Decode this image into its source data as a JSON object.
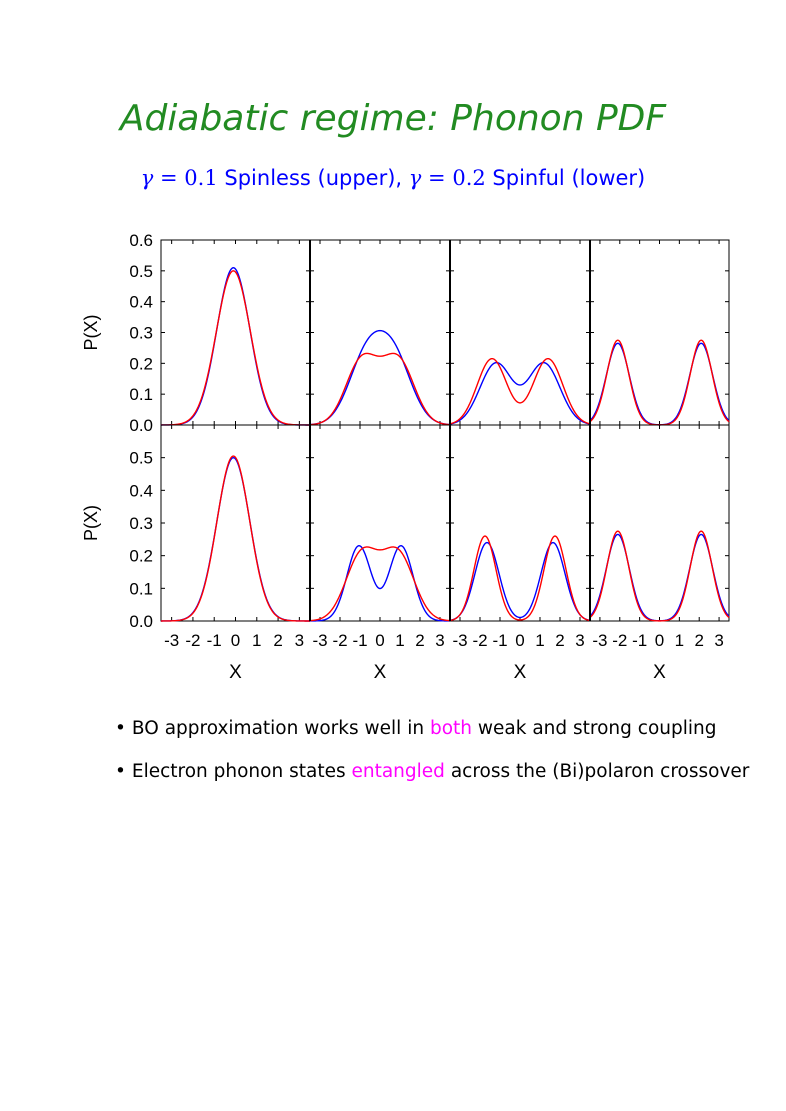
{
  "title": "Adiabatic regime: Phonon PDF",
  "subtitle": {
    "gamma_symbol": "γ",
    "equals": "=",
    "gamma_upper": "0.1",
    "upper_text": "Spinless (upper),",
    "gamma_lower": "0.2",
    "lower_text": "Spinful (lower)"
  },
  "colors": {
    "title": "#228B22",
    "subtitle": "#0000ff",
    "series_a": "#0000ff",
    "series_b": "#ff0000",
    "highlight": "#ff00ff"
  },
  "bullets": [
    {
      "symbol": "•",
      "before": "BO approximation works well in",
      "highlight": "both",
      "after": "weak and strong coupling"
    },
    {
      "symbol": "•",
      "before": "Electron phonon states",
      "highlight": "entangled",
      "after": "across the (Bi)polaron crossover"
    }
  ],
  "chart_data": {
    "type": "line",
    "layout": "2 rows x 4 columns of panels",
    "ylabel": "P(X)",
    "xlabel": "X",
    "xlim": [
      -3.5,
      3.5
    ],
    "xticks": [
      -3,
      -2,
      -1,
      0,
      1,
      2,
      3
    ],
    "xtick_labels": [
      "-3",
      "-2",
      "-1",
      "0",
      "1",
      "2",
      "3"
    ],
    "rows": [
      {
        "label": "upper",
        "ylim": [
          0,
          0.6
        ],
        "yticks": [
          0,
          0.1,
          0.2,
          0.3,
          0.4,
          0.5,
          0.6
        ],
        "ytick_labels": [
          "0.0",
          "0.1",
          "0.2",
          "0.3",
          "0.4",
          "0.5",
          "0.6"
        ],
        "panels": [
          {
            "series": [
              {
                "color": "#0000ff",
                "peaks": [
                  [
                    -0.1,
                    0.51,
                    0.78
                  ]
                ]
              },
              {
                "color": "#ff0000",
                "peaks": [
                  [
                    -0.1,
                    0.5,
                    0.8
                  ]
                ]
              }
            ]
          },
          {
            "series": [
              {
                "color": "#0000ff",
                "peaks": [
                  [
                    -0.7,
                    0.21,
                    0.88
                  ],
                  [
                    0.7,
                    0.21,
                    0.88
                  ]
                ]
              },
              {
                "color": "#ff0000",
                "peaks": [
                  [
                    -0.9,
                    0.21,
                    0.8
                  ],
                  [
                    0.9,
                    0.21,
                    0.8
                  ]
                ]
              }
            ]
          },
          {
            "series": [
              {
                "color": "#0000ff",
                "peaks": [
                  [
                    -1.2,
                    0.2,
                    0.8
                  ],
                  [
                    1.2,
                    0.2,
                    0.8
                  ]
                ]
              },
              {
                "color": "#ff0000",
                "peaks": [
                  [
                    -1.4,
                    0.215,
                    0.74
                  ],
                  [
                    1.4,
                    0.215,
                    0.74
                  ]
                ]
              }
            ]
          },
          {
            "series": [
              {
                "color": "#0000ff",
                "peaks": [
                  [
                    -2.1,
                    0.265,
                    0.58
                  ],
                  [
                    2.1,
                    0.265,
                    0.58
                  ]
                ]
              },
              {
                "color": "#ff0000",
                "peaks": [
                  [
                    -2.1,
                    0.275,
                    0.55
                  ],
                  [
                    2.1,
                    0.275,
                    0.55
                  ]
                ]
              }
            ]
          }
        ]
      },
      {
        "label": "lower",
        "ylim": [
          0,
          0.6
        ],
        "yticks": [
          0,
          0.1,
          0.2,
          0.3,
          0.4,
          0.5
        ],
        "ytick_labels": [
          "0.0",
          "0.1",
          "0.2",
          "0.3",
          "0.4",
          "0.5"
        ],
        "panels": [
          {
            "series": [
              {
                "color": "#0000ff",
                "peaks": [
                  [
                    -0.1,
                    0.5,
                    0.78
                  ]
                ]
              },
              {
                "color": "#ff0000",
                "peaks": [
                  [
                    -0.1,
                    0.505,
                    0.77
                  ]
                ]
              }
            ]
          },
          {
            "series": [
              {
                "color": "#0000ff",
                "peaks": [
                  [
                    -1.05,
                    0.23,
                    0.6
                  ],
                  [
                    1.05,
                    0.23,
                    0.6
                  ]
                ]
              },
              {
                "color": "#ff0000",
                "peaks": [
                  [
                    -0.9,
                    0.205,
                    0.8
                  ],
                  [
                    0.9,
                    0.205,
                    0.8
                  ]
                ]
              }
            ]
          },
          {
            "series": [
              {
                "color": "#0000ff",
                "peaks": [
                  [
                    -1.65,
                    0.24,
                    0.6
                  ],
                  [
                    1.65,
                    0.24,
                    0.6
                  ]
                ]
              },
              {
                "color": "#ff0000",
                "peaks": [
                  [
                    -1.75,
                    0.26,
                    0.55
                  ],
                  [
                    1.75,
                    0.26,
                    0.55
                  ]
                ]
              }
            ]
          },
          {
            "series": [
              {
                "color": "#0000ff",
                "peaks": [
                  [
                    -2.1,
                    0.265,
                    0.58
                  ],
                  [
                    2.1,
                    0.265,
                    0.58
                  ]
                ]
              },
              {
                "color": "#ff0000",
                "peaks": [
                  [
                    -2.1,
                    0.275,
                    0.55
                  ],
                  [
                    2.1,
                    0.275,
                    0.55
                  ]
                ]
              }
            ]
          }
        ]
      }
    ]
  }
}
